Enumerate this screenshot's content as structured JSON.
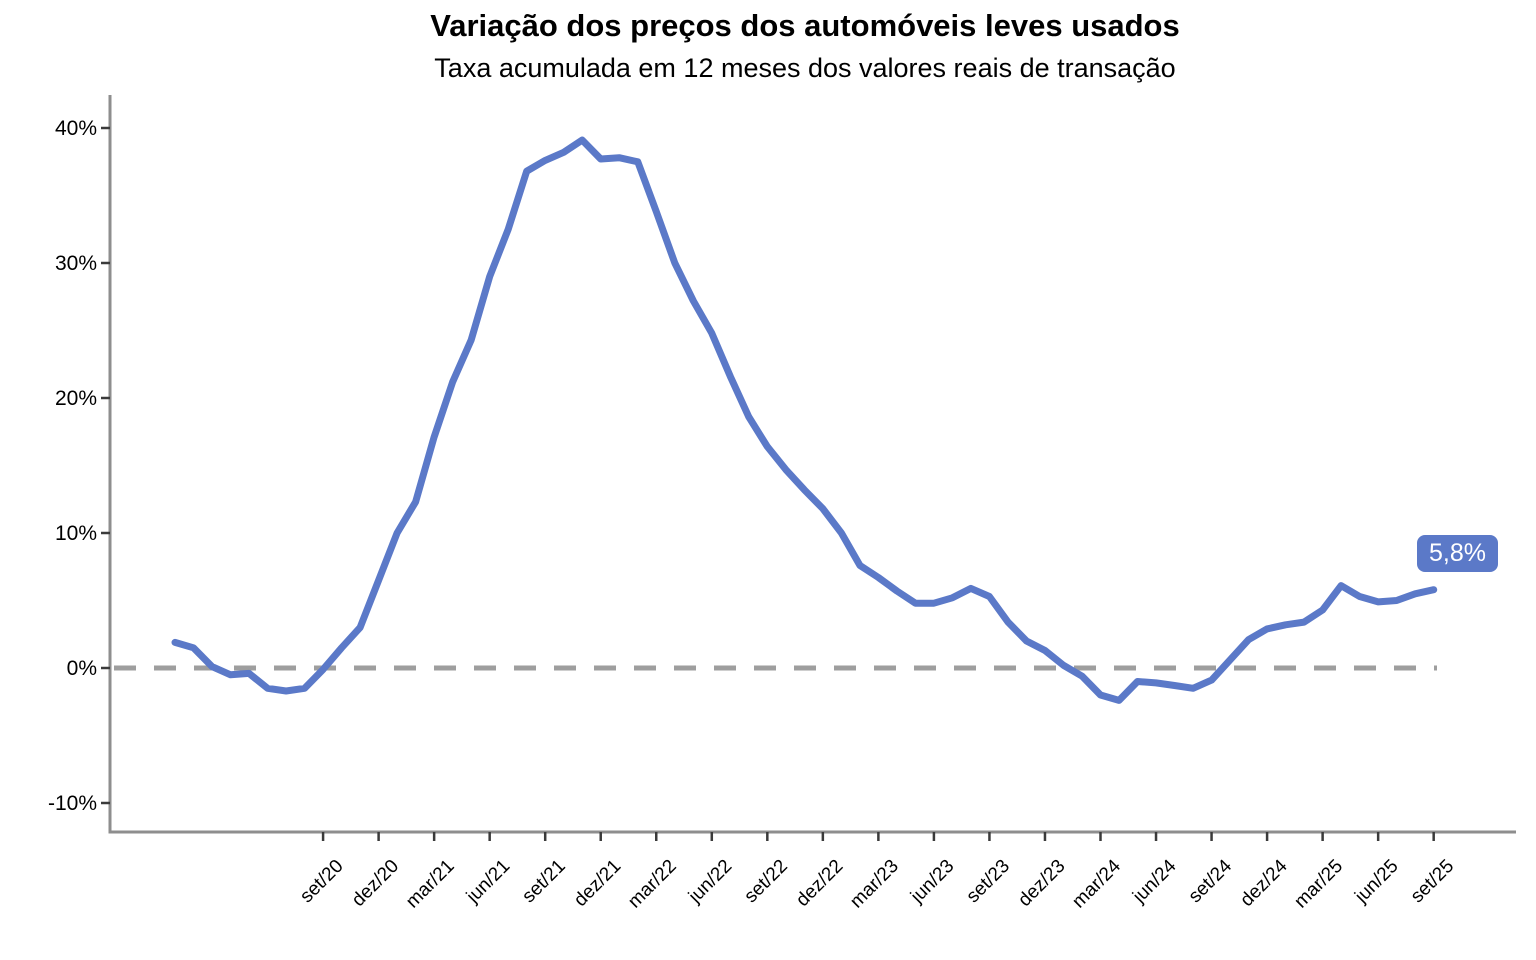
{
  "header": {
    "title": "Variação dos preços dos automóveis leves usados",
    "subtitle": "Taxa acumulada em 12 meses dos valores reais de transação"
  },
  "end_label": {
    "text": "5,8%"
  },
  "colors": {
    "line": "#5B79C8",
    "badge_bg": "#5B79C8",
    "badge_text": "#FFFFFF",
    "axis": "#8E8E8E",
    "tick_mark": "#3A3A3A",
    "zero_line": "#9E9E9E",
    "label_text": "#000000",
    "background": "#FFFFFF"
  },
  "chart_data": {
    "type": "line",
    "title": "Variação dos preços dos automóveis leves usados",
    "subtitle": "Taxa acumulada em 12 meses dos valores reais de transação",
    "xlabel": "",
    "ylabel": "",
    "grid": false,
    "legend": false,
    "zero_reference_line": true,
    "last_value_label": "5,8%",
    "ylim": [
      -12.2,
      42.4
    ],
    "y_ticks": {
      "labels": [
        "40%",
        "30%",
        "20%",
        "10%",
        "0%",
        "-10%"
      ],
      "values": [
        40,
        30,
        20,
        10,
        0,
        -10
      ]
    },
    "x_ticks": [
      "set/20",
      "dez/20",
      "mar/21",
      "jun/21",
      "set/21",
      "dez/21",
      "mar/22",
      "jun/22",
      "set/22",
      "dez/22",
      "mar/23",
      "jun/23",
      "set/23",
      "dez/23",
      "mar/24",
      "jun/24",
      "set/24",
      "dez/24",
      "mar/25",
      "jun/25",
      "set/25"
    ],
    "x": [
      "jan/20",
      "fev/20",
      "mar/20",
      "abr/20",
      "mai/20",
      "jun/20",
      "jul/20",
      "ago/20",
      "set/20",
      "out/20",
      "nov/20",
      "dez/20",
      "jan/21",
      "fev/21",
      "mar/21",
      "abr/21",
      "mai/21",
      "jun/21",
      "jul/21",
      "ago/21",
      "set/21",
      "out/21",
      "nov/21",
      "dez/21",
      "jan/22",
      "fev/22",
      "mar/22",
      "abr/22",
      "mai/22",
      "jun/22",
      "jul/22",
      "ago/22",
      "set/22",
      "out/22",
      "nov/22",
      "dez/22",
      "jan/23",
      "fev/23",
      "mar/23",
      "abr/23",
      "mai/23",
      "jun/23",
      "jul/23",
      "ago/23",
      "set/23",
      "out/23",
      "nov/23",
      "dez/23",
      "jan/24",
      "fev/24",
      "mar/24",
      "abr/24",
      "mai/24",
      "jun/24",
      "jul/24",
      "ago/24",
      "set/24",
      "out/24",
      "nov/24",
      "dez/24",
      "jan/25",
      "fev/25",
      "mar/25",
      "abr/25",
      "mai/25",
      "jun/25",
      "jul/25",
      "ago/25",
      "set/25"
    ],
    "series": [
      {
        "name": "Taxa acumulada em 12 meses",
        "color": "#5B79C8",
        "values": [
          1.9,
          1.5,
          0.1,
          -0.5,
          -0.4,
          -1.5,
          -1.7,
          -1.5,
          -0.1,
          1.5,
          3.0,
          6.5,
          10.0,
          12.3,
          17.1,
          21.2,
          24.3,
          29.0,
          32.5,
          36.8,
          37.6,
          38.2,
          39.1,
          37.7,
          37.8,
          37.5,
          33.8,
          30.0,
          27.2,
          24.8,
          21.6,
          18.6,
          16.4,
          14.7,
          13.2,
          11.8,
          10.0,
          7.6,
          6.7,
          5.7,
          4.8,
          4.8,
          5.2,
          5.9,
          5.3,
          3.4,
          2.0,
          1.3,
          0.2,
          -0.6,
          -2.0,
          -2.4,
          -1.0,
          -1.1,
          -1.3,
          -1.5,
          -0.9,
          0.6,
          2.1,
          2.9,
          3.2,
          3.4,
          4.3,
          6.1,
          5.3,
          4.9,
          5.0,
          5.5,
          5.8
        ]
      }
    ]
  }
}
